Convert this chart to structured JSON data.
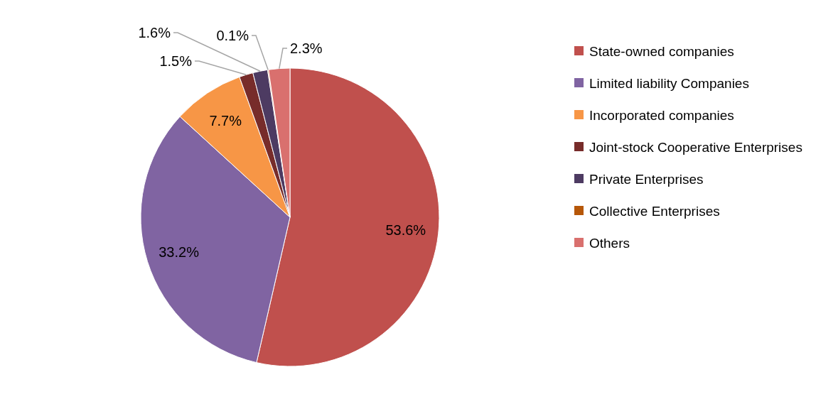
{
  "chart_data": {
    "type": "pie",
    "categories": [
      "State-owned companies",
      "Limited liability Companies",
      "Incorporated companies",
      "Joint-stock Cooperative Enterprises",
      "Private Enterprises",
      "Collective Enterprises",
      "Others"
    ],
    "values": [
      53.6,
      33.2,
      7.7,
      1.5,
      1.6,
      0.1,
      2.3
    ],
    "colors": [
      "#c0504d",
      "#8064a2",
      "#f79646",
      "#772c2a",
      "#4d3b62",
      "#b65708",
      "#d9706e"
    ],
    "value_labels": [
      "53.6%",
      "33.2%",
      "7.7%",
      "1.5%",
      "1.6%",
      "0.1%",
      "2.3%"
    ],
    "legend": "right"
  }
}
